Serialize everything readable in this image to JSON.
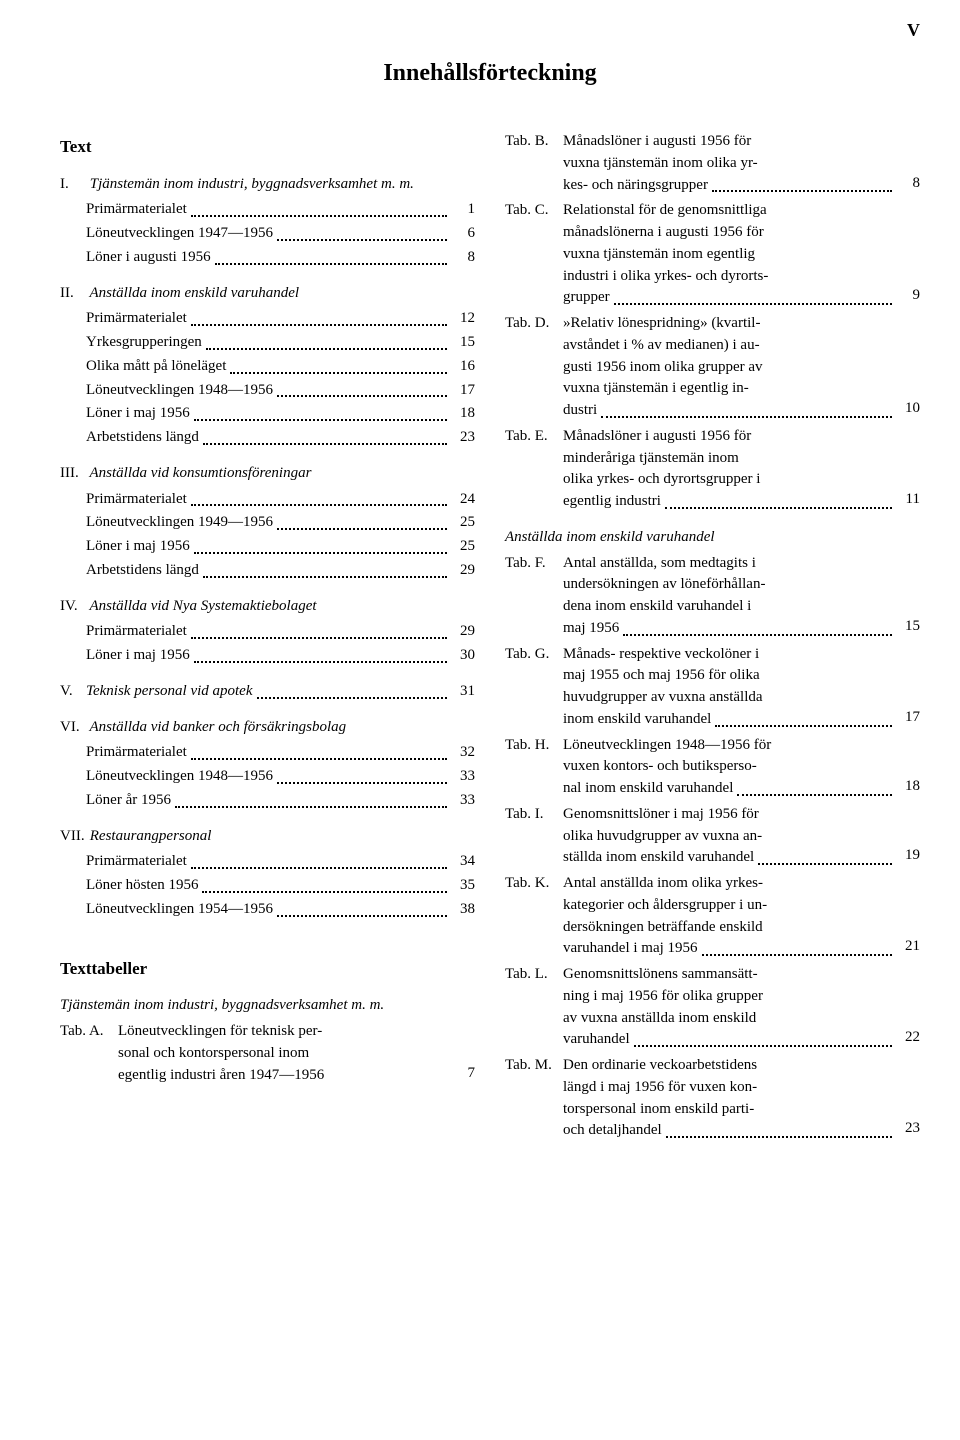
{
  "pageNumeral": "V",
  "title": "Innehållsförteckning",
  "headings": {
    "text": "Text",
    "tables": "Texttabeller"
  },
  "sections": [
    {
      "num": "I.",
      "title": "Tjänstemän inom industri, byggnadsverksamhet m. m.",
      "entries": [
        {
          "label": "Primärmaterialet",
          "pg": "1"
        },
        {
          "label": "Löneutvecklingen 1947—1956",
          "pg": "6"
        },
        {
          "label": "Löner i augusti 1956",
          "pg": "8"
        }
      ]
    },
    {
      "num": "II.",
      "title": "Anställda inom enskild varuhandel",
      "entries": [
        {
          "label": "Primärmaterialet",
          "pg": "12"
        },
        {
          "label": "Yrkesgrupperingen",
          "pg": "15"
        },
        {
          "label": "Olika mått på löneläget",
          "pg": "16"
        },
        {
          "label": "Löneutvecklingen 1948—1956",
          "pg": "17"
        },
        {
          "label": "Löner i maj 1956",
          "pg": "18"
        },
        {
          "label": "Arbetstidens längd",
          "pg": "23"
        }
      ]
    },
    {
      "num": "III.",
      "title": "Anställda vid konsumtionsföreningar",
      "entries": [
        {
          "label": "Primärmaterialet",
          "pg": "24"
        },
        {
          "label": "Löneutvecklingen 1949—1956",
          "pg": "25"
        },
        {
          "label": "Löner i maj 1956",
          "pg": "25"
        },
        {
          "label": "Arbetstidens längd",
          "pg": "29"
        }
      ]
    },
    {
      "num": "IV.",
      "title": "Anställda vid Nya Systemaktiebolaget",
      "entries": [
        {
          "label": "Primärmaterialet",
          "pg": "29"
        },
        {
          "label": "Löner i maj 1956",
          "pg": "30"
        }
      ]
    },
    {
      "num": "V.",
      "title": "Teknisk personal vid apotek",
      "inlinePg": "31",
      "entries": []
    },
    {
      "num": "VI.",
      "title": "Anställda vid banker och försäkringsbolag",
      "entries": [
        {
          "label": "Primärmaterialet",
          "pg": "32"
        },
        {
          "label": "Löneutvecklingen 1948—1956",
          "pg": "33"
        },
        {
          "label": "Löner år 1956",
          "pg": "33"
        }
      ]
    },
    {
      "num": "VII.",
      "title": "Restaurangpersonal",
      "entries": [
        {
          "label": "Primärmaterialet",
          "pg": "34"
        },
        {
          "label": "Löner hösten 1956",
          "pg": "35"
        },
        {
          "label": "Löneutvecklingen 1954—1956",
          "pg": "38"
        }
      ]
    }
  ],
  "tablesIntro": "Tjänstemän inom industri, byggnadsverksamhet m. m.",
  "tabA": {
    "tab": "Tab. A.",
    "lines": [
      "Löneutvecklingen för teknisk per-",
      "sonal och kontorspersonal inom"
    ],
    "last": "egentlig industri åren 1947—1956",
    "pg": "7"
  },
  "rightTabs": [
    {
      "tab": "Tab. B.",
      "lines": [
        "Månadslöner i augusti 1956 för",
        "vuxna tjänstemän inom olika yr-"
      ],
      "last": "kes- och näringsgrupper",
      "pg": "8"
    },
    {
      "tab": "Tab. C.",
      "lines": [
        "Relationstal för de genomsnittliga",
        "månadslönerna i augusti 1956 för",
        "vuxna tjänstemän inom egentlig",
        "industri i olika yrkes- och dyrorts-"
      ],
      "last": "grupper",
      "pg": "9"
    },
    {
      "tab": "Tab. D.",
      "lines": [
        "»Relativ lönespridning» (kvartil-",
        "avståndet i % av medianen) i au-",
        "gusti 1956 inom olika grupper av",
        "vuxna tjänstemän i egentlig in-"
      ],
      "last": "dustri",
      "pg": "10"
    },
    {
      "tab": "Tab. E.",
      "lines": [
        "Månadslöner i augusti 1956 för",
        "minderåriga tjänstemän inom",
        "olika yrkes- och dyrortsgrupper i"
      ],
      "last": "egentlig industri",
      "pg": "11"
    }
  ],
  "rightSub": "Anställda inom enskild varuhandel",
  "rightTabs2": [
    {
      "tab": "Tab. F.",
      "lines": [
        "Antal anställda, som medtagits i",
        "undersökningen av löneförhållan-",
        "dena inom enskild varuhandel i"
      ],
      "last": "maj 1956",
      "pg": "15"
    },
    {
      "tab": "Tab. G.",
      "lines": [
        "Månads- respektive veckolöner i",
        "maj 1955 och maj 1956 för olika",
        "huvudgrupper av vuxna anställda"
      ],
      "last": "inom enskild varuhandel",
      "pg": "17"
    },
    {
      "tab": "Tab. H.",
      "lines": [
        "Löneutvecklingen 1948—1956 för",
        "vuxen kontors- och butiksperso-"
      ],
      "last": "nal inom enskild varuhandel",
      "pg": "18"
    },
    {
      "tab": "Tab. I.",
      "lines": [
        "Genomsnittslöner i maj 1956 för",
        "olika huvudgrupper av vuxna an-"
      ],
      "last": "ställda inom enskild varuhandel",
      "pg": "19"
    },
    {
      "tab": "Tab. K.",
      "lines": [
        "Antal anställda inom olika yrkes-",
        "kategorier och åldersgrupper i un-",
        "dersökningen beträffande enskild"
      ],
      "last": "varuhandel i maj 1956",
      "pg": "21"
    },
    {
      "tab": "Tab. L.",
      "lines": [
        "Genomsnittslönens sammansätt-",
        "ning i maj 1956 för olika grupper",
        "av vuxna anställda inom enskild"
      ],
      "last": "varuhandel",
      "pg": "22"
    },
    {
      "tab": "Tab. M.",
      "lines": [
        "Den ordinarie veckoarbetstidens",
        "längd i maj 1956 för vuxen kon-",
        "torspersonal inom enskild parti-"
      ],
      "last": "och detaljhandel",
      "pg": "23"
    }
  ]
}
